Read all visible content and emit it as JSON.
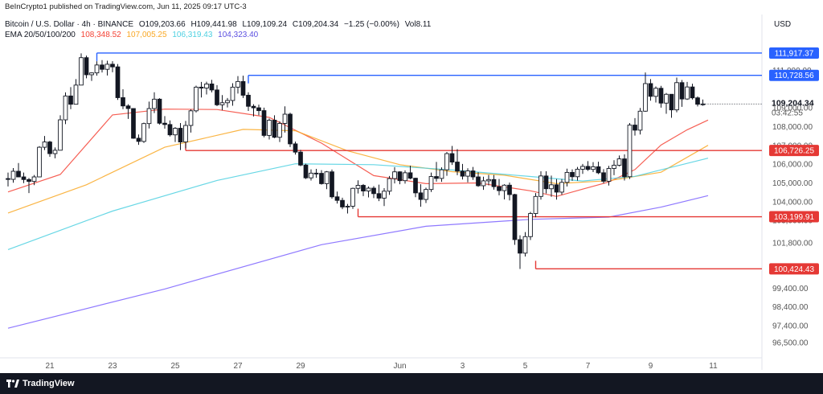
{
  "header": {
    "publisher": "BeInCrypto1 published on TradingView.com, Jun 11, 2025 09:17 UTC-3",
    "symbol": "Bitcoin / U.S. Dollar · 4h · BINANCE",
    "open": "O109,203.66",
    "high": "H109,441.98",
    "low": "L109,109.24",
    "close": "C109,204.34",
    "change": "−1.25 (−0.00%)",
    "volume": "Vol8.11",
    "ema_label": "EMA 20/50/100/200",
    "ema_values": [
      "108,348.52",
      "107,005.25",
      "106,319.43",
      "104,323.40"
    ],
    "currency": "USD"
  },
  "footer": {
    "brand": "TradingView"
  },
  "colors": {
    "up": "#131722",
    "down": "#131722",
    "support": "#e53935",
    "resistance": "#2962ff",
    "ema20": "#f44336",
    "ema50": "#f9a825",
    "ema100": "#4dd0e1",
    "ema200": "#7b61ff",
    "footer": "#131722"
  },
  "chart_data": {
    "type": "candlestick",
    "timeframe": "4h",
    "x_tick_labels": [
      "21",
      "23",
      "25",
      "27",
      "29",
      "Jun",
      "3",
      "5",
      "7",
      "9",
      "11"
    ],
    "y_tick_labels": [
      96500,
      97400,
      98400,
      99400,
      100400,
      101800,
      103000,
      104000,
      105000,
      106000,
      107000,
      108000,
      109000,
      111000
    ],
    "ylim": [
      95900,
      112600
    ],
    "last_price": 109204.34,
    "countdown": "03:42:55",
    "levels": [
      {
        "price": 111917.37,
        "label": "111,917.37",
        "kind": "resistance"
      },
      {
        "price": 110728.56,
        "label": "110,728.56",
        "kind": "resistance"
      },
      {
        "price": 106726.25,
        "label": "106,726.25",
        "kind": "support"
      },
      {
        "price": 103199.91,
        "label": "103,199.91",
        "kind": "support"
      },
      {
        "price": 100424.43,
        "label": "100,424.43",
        "kind": "support"
      }
    ],
    "candles": [
      [
        105230,
        105550,
        104810,
        105190
      ],
      [
        105190,
        105790,
        105010,
        105620
      ],
      [
        105620,
        106060,
        105310,
        105320
      ],
      [
        105320,
        105550,
        104990,
        105180
      ],
      [
        105180,
        105260,
        104460,
        105080
      ],
      [
        105080,
        105420,
        104880,
        105320
      ],
      [
        105320,
        106960,
        105320,
        106900
      ],
      [
        106900,
        107500,
        106750,
        107180
      ],
      [
        107180,
        107240,
        106390,
        106560
      ],
      [
        106560,
        106890,
        106310,
        106740
      ],
      [
        106740,
        108600,
        106740,
        108360
      ],
      [
        108360,
        109820,
        108130,
        109630
      ],
      [
        109630,
        110100,
        108930,
        109190
      ],
      [
        109190,
        110530,
        109190,
        110210
      ],
      [
        110210,
        111900,
        110210,
        111670
      ],
      [
        111670,
        111780,
        110570,
        110760
      ],
      [
        110760,
        110880,
        110430,
        110860
      ],
      [
        110860,
        111480,
        110710,
        111280
      ],
      [
        111280,
        111540,
        110880,
        111050
      ],
      [
        111050,
        111510,
        110720,
        111320
      ],
      [
        111320,
        111480,
        110890,
        111180
      ],
      [
        111180,
        111330,
        109420,
        109540
      ],
      [
        109540,
        109990,
        108930,
        109100
      ],
      [
        109100,
        109190,
        108410,
        108960
      ],
      [
        108960,
        108980,
        107350,
        107380
      ],
      [
        107380,
        107580,
        107030,
        107210
      ],
      [
        107210,
        108210,
        107130,
        108160
      ],
      [
        108160,
        109330,
        107900,
        108960
      ],
      [
        108960,
        109830,
        108720,
        109460
      ],
      [
        109460,
        109510,
        108110,
        108180
      ],
      [
        108180,
        108560,
        107890,
        108110
      ],
      [
        108110,
        108330,
        107470,
        107560
      ],
      [
        107560,
        107970,
        107180,
        107910
      ],
      [
        107910,
        108190,
        106750,
        107180
      ],
      [
        107180,
        108300,
        106840,
        108060
      ],
      [
        108060,
        108920,
        107680,
        108840
      ],
      [
        108840,
        110180,
        108750,
        110100
      ],
      [
        110100,
        110380,
        109550,
        110050
      ],
      [
        110050,
        110390,
        109710,
        110270
      ],
      [
        110270,
        110490,
        109820,
        109950
      ],
      [
        109950,
        110210,
        109090,
        109160
      ],
      [
        109160,
        109680,
        108870,
        109270
      ],
      [
        109270,
        109520,
        109020,
        109390
      ],
      [
        109390,
        110310,
        109110,
        110100
      ],
      [
        110100,
        110690,
        109760,
        110400
      ],
      [
        110400,
        110710,
        109520,
        109670
      ],
      [
        109670,
        109830,
        108830,
        109080
      ],
      [
        109080,
        109190,
        108540,
        109000
      ],
      [
        109000,
        109170,
        108600,
        108850
      ],
      [
        108850,
        109010,
        107430,
        107530
      ],
      [
        107530,
        108430,
        107310,
        108340
      ],
      [
        108340,
        108600,
        107380,
        107430
      ],
      [
        107430,
        108280,
        107180,
        108170
      ],
      [
        108170,
        109080,
        107680,
        108660
      ],
      [
        108660,
        108740,
        106910,
        107080
      ],
      [
        107080,
        107200,
        106510,
        106640
      ],
      [
        106640,
        106760,
        105890,
        105950
      ],
      [
        105950,
        106020,
        105210,
        105270
      ],
      [
        105270,
        105720,
        105130,
        105520
      ],
      [
        105520,
        105750,
        105270,
        105510
      ],
      [
        105510,
        105680,
        104910,
        104960
      ],
      [
        104960,
        105630,
        104670,
        105590
      ],
      [
        105590,
        105710,
        104160,
        104260
      ],
      [
        104260,
        104540,
        103900,
        104070
      ],
      [
        104070,
        104210,
        103600,
        103720
      ],
      [
        103720,
        103880,
        103370,
        103760
      ],
      [
        103760,
        104750,
        103620,
        104710
      ],
      [
        104710,
        105140,
        104440,
        104870
      ],
      [
        104870,
        104940,
        104300,
        104570
      ],
      [
        104570,
        104810,
        104230,
        104720
      ],
      [
        104720,
        104830,
        104190,
        104430
      ],
      [
        104430,
        104910,
        104030,
        104190
      ],
      [
        104190,
        104720,
        103770,
        104560
      ],
      [
        104560,
        105370,
        104360,
        105230
      ],
      [
        105230,
        105840,
        104970,
        105590
      ],
      [
        105590,
        105620,
        104930,
        105120
      ],
      [
        105120,
        105670,
        104960,
        105540
      ],
      [
        105540,
        105920,
        105200,
        105250
      ],
      [
        105250,
        105280,
        104240,
        104470
      ],
      [
        104470,
        104930,
        103730,
        104120
      ],
      [
        104120,
        104750,
        103930,
        104650
      ],
      [
        104650,
        105550,
        104520,
        105340
      ],
      [
        105340,
        106120,
        105070,
        105240
      ],
      [
        105240,
        105830,
        105060,
        105700
      ],
      [
        105700,
        106650,
        105380,
        106560
      ],
      [
        106560,
        106970,
        105960,
        106110
      ],
      [
        106110,
        106800,
        105410,
        105630
      ],
      [
        105630,
        106010,
        105180,
        105360
      ],
      [
        105360,
        105780,
        105030,
        105640
      ],
      [
        105640,
        105850,
        105160,
        105320
      ],
      [
        105320,
        105570,
        104790,
        104850
      ],
      [
        104850,
        105330,
        104630,
        105110
      ],
      [
        105110,
        105430,
        104870,
        105180
      ],
      [
        105180,
        105420,
        104640,
        104800
      ],
      [
        104800,
        105210,
        104340,
        104590
      ],
      [
        104590,
        104930,
        104120,
        104880
      ],
      [
        104880,
        105020,
        104070,
        104380
      ],
      [
        104380,
        104420,
        101700,
        101980
      ],
      [
        101980,
        102210,
        100420,
        101260
      ],
      [
        101260,
        102380,
        101080,
        102140
      ],
      [
        102140,
        103460,
        101960,
        103370
      ],
      [
        103370,
        104460,
        103170,
        104280
      ],
      [
        104280,
        105620,
        104110,
        105370
      ],
      [
        105370,
        105620,
        104440,
        104690
      ],
      [
        104690,
        105390,
        104260,
        104900
      ],
      [
        104900,
        105210,
        104110,
        104510
      ],
      [
        104510,
        105210,
        104370,
        105030
      ],
      [
        105030,
        105760,
        104810,
        105560
      ],
      [
        105560,
        105720,
        105110,
        105330
      ],
      [
        105330,
        105850,
        105120,
        105730
      ],
      [
        105730,
        106010,
        105480,
        105880
      ],
      [
        105880,
        106160,
        105640,
        105720
      ],
      [
        105720,
        106110,
        105580,
        105860
      ],
      [
        105860,
        106130,
        105470,
        105540
      ],
      [
        105540,
        105730,
        104980,
        105090
      ],
      [
        105090,
        105910,
        104860,
        105770
      ],
      [
        105770,
        106210,
        105410,
        105940
      ],
      [
        105940,
        106460,
        105880,
        106280
      ],
      [
        106280,
        106520,
        105130,
        105330
      ],
      [
        105330,
        108190,
        105210,
        108080
      ],
      [
        108080,
        108450,
        107520,
        107810
      ],
      [
        107810,
        108990,
        107580,
        108820
      ],
      [
        108820,
        110880,
        108790,
        110290
      ],
      [
        110290,
        110530,
        109380,
        109610
      ],
      [
        109610,
        110140,
        109280,
        110040
      ],
      [
        110040,
        110170,
        109010,
        109250
      ],
      [
        109250,
        109790,
        108680,
        109720
      ],
      [
        109720,
        109730,
        108470,
        108890
      ],
      [
        108890,
        110610,
        108760,
        110340
      ],
      [
        110340,
        110480,
        109050,
        109470
      ],
      [
        109470,
        110380,
        109420,
        110110
      ],
      [
        110110,
        110280,
        109440,
        109530
      ],
      [
        109530,
        109610,
        109070,
        109190
      ],
      [
        109190,
        109440,
        109110,
        109204
      ]
    ],
    "ema_series": [
      {
        "name": "EMA 20",
        "label": "108,348.52",
        "points": [
          [
            0,
            104520
          ],
          [
            10,
            105450
          ],
          [
            20,
            108620
          ],
          [
            30,
            108930
          ],
          [
            40,
            108910
          ],
          [
            50,
            108490
          ],
          [
            60,
            107120
          ],
          [
            70,
            105390
          ],
          [
            80,
            104960
          ],
          [
            90,
            105000
          ],
          [
            100,
            104580
          ],
          [
            105,
            104280
          ],
          [
            110,
            104670
          ],
          [
            115,
            105050
          ],
          [
            120,
            105710
          ],
          [
            125,
            107020
          ],
          [
            130,
            107830
          ],
          [
            134,
            108348
          ]
        ]
      },
      {
        "name": "EMA 50",
        "label": "107,005.25",
        "points": [
          [
            0,
            103400
          ],
          [
            15,
            104900
          ],
          [
            30,
            106900
          ],
          [
            45,
            107850
          ],
          [
            55,
            107780
          ],
          [
            65,
            106710
          ],
          [
            75,
            105970
          ],
          [
            85,
            105600
          ],
          [
            95,
            105410
          ],
          [
            105,
            104960
          ],
          [
            115,
            105120
          ],
          [
            125,
            105570
          ],
          [
            134,
            107005
          ]
        ]
      },
      {
        "name": "EMA 100",
        "label": "106,319.43",
        "points": [
          [
            0,
            101450
          ],
          [
            20,
            103500
          ],
          [
            40,
            105130
          ],
          [
            55,
            106020
          ],
          [
            70,
            105970
          ],
          [
            85,
            105690
          ],
          [
            100,
            105340
          ],
          [
            110,
            105100
          ],
          [
            120,
            105350
          ],
          [
            134,
            106319
          ]
        ]
      },
      {
        "name": "EMA 200",
        "label": "104,323.40",
        "points": [
          [
            0,
            97260
          ],
          [
            30,
            99350
          ],
          [
            60,
            101710
          ],
          [
            80,
            102690
          ],
          [
            100,
            103060
          ],
          [
            115,
            103180
          ],
          [
            125,
            103710
          ],
          [
            134,
            104323
          ]
        ]
      }
    ]
  }
}
